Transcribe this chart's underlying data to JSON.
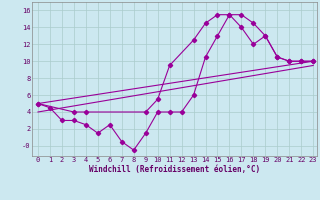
{
  "xlabel": "Windchill (Refroidissement éolien,°C)",
  "bg_color": "#cce8f0",
  "grid_color": "#aacccc",
  "line_color": "#990099",
  "xlim": [
    -0.5,
    23.3
  ],
  "ylim": [
    -1.2,
    17
  ],
  "xticks": [
    0,
    1,
    2,
    3,
    4,
    5,
    6,
    7,
    8,
    9,
    10,
    11,
    12,
    13,
    14,
    15,
    16,
    17,
    18,
    19,
    20,
    21,
    22,
    23
  ],
  "yticks": [
    0,
    2,
    4,
    6,
    8,
    10,
    12,
    14,
    16
  ],
  "ytick_labels": [
    "-0",
    "2",
    "4",
    "6",
    "8",
    "10",
    "12",
    "14",
    "16"
  ],
  "line1_x": [
    0,
    1,
    2,
    3,
    4,
    5,
    6,
    7,
    8,
    9,
    10,
    11,
    12,
    13,
    14,
    15,
    16,
    17,
    18,
    19,
    20,
    21,
    22,
    23
  ],
  "line1_y": [
    5,
    4.5,
    3,
    3,
    2.5,
    1.5,
    2.5,
    0.5,
    -0.5,
    1.5,
    4,
    4,
    4,
    6,
    10.5,
    13,
    15.5,
    15.5,
    14.5,
    13,
    10.5,
    10,
    10,
    10
  ],
  "line2_x": [
    0,
    3,
    4,
    9,
    10,
    11,
    13,
    14,
    15,
    16,
    17,
    18,
    19,
    20,
    21,
    22,
    23
  ],
  "line2_y": [
    5,
    4,
    4,
    4,
    5.5,
    9.5,
    12.5,
    14.5,
    15.5,
    15.5,
    14,
    12,
    13,
    10.5,
    10,
    10,
    10
  ],
  "line3_x": [
    0,
    23
  ],
  "line3_y": [
    4,
    9.5
  ],
  "line4_x": [
    0,
    23
  ],
  "line4_y": [
    5,
    10
  ],
  "font_color": "#660066",
  "tick_fontsize": 5,
  "label_fontsize": 5.5,
  "linewidth": 0.8,
  "markersize": 2.2
}
